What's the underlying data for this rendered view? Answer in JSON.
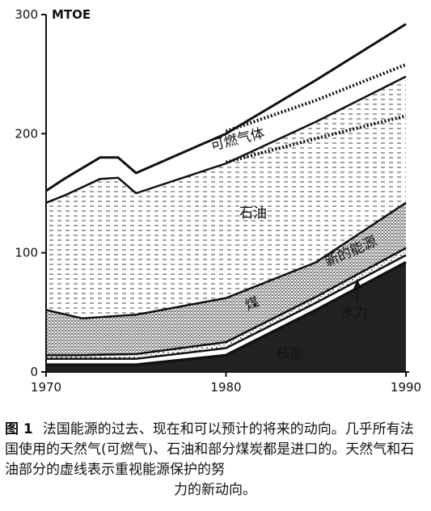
{
  "chart_data": {
    "type": "area",
    "unit_label": "MTOE",
    "x_ticks": [
      1970,
      1980,
      1990
    ],
    "y_ticks": [
      0,
      100,
      200,
      300
    ],
    "xlim": [
      1970,
      1990
    ],
    "ylim": [
      0,
      300
    ],
    "grid": false,
    "layers": [
      {
        "name": "核能",
        "fill": "dark",
        "x": [
          1970,
          1972,
          1975,
          1980,
          1985,
          1990
        ],
        "y": [
          6,
          6,
          6,
          14,
          52,
          92
        ]
      },
      {
        "name": "水力",
        "fill": "line",
        "x": [
          1970,
          1972,
          1975,
          1980,
          1985,
          1990
        ],
        "y": [
          11,
          11,
          11,
          20,
          58,
          98
        ]
      },
      {
        "name": "煤",
        "fill": "stipple",
        "x": [
          1970,
          1972,
          1975,
          1980,
          1985,
          1990
        ],
        "y": [
          14,
          14,
          15,
          25,
          63,
          104
        ]
      },
      {
        "name": "新的能源",
        "fill": "dense-stipple",
        "x": [
          1970,
          1972,
          1975,
          1980,
          1985,
          1990
        ],
        "y": [
          52,
          45,
          48,
          62,
          92,
          142
        ]
      },
      {
        "name": "石油",
        "fill": "dash",
        "x": [
          1970,
          1971,
          1973,
          1974,
          1975,
          1980,
          1985,
          1990
        ],
        "y": [
          142,
          148,
          162,
          163,
          150,
          175,
          210,
          248
        ]
      },
      {
        "name": "可燃气体",
        "fill": "outline",
        "x": [
          1970,
          1971,
          1973,
          1974,
          1975,
          1980,
          1985,
          1990
        ],
        "y": [
          152,
          162,
          180,
          180,
          167,
          200,
          245,
          292
        ]
      }
    ],
    "dashed_projections": [
      {
        "name": "石油",
        "x": [
          1980,
          1985,
          1990
        ],
        "y": [
          176,
          196,
          215
        ]
      },
      {
        "name": "可燃气体",
        "x": [
          1980,
          1985,
          1990
        ],
        "y": [
          202,
          228,
          258
        ]
      }
    ],
    "annotations": [
      "可燃气体",
      "石油",
      "新的能源",
      "煤",
      "水力",
      "核能"
    ]
  },
  "caption": {
    "figure_number": "图 1",
    "text": "法国能源的过去、现在和可以预计的将来的动向。几乎所有法国使用的天然气(可燃气)、石油和部分煤炭都是进口的。天然气和石油部分的虚线表示重视能源保护的努",
    "last_line": "力的新动向。"
  }
}
